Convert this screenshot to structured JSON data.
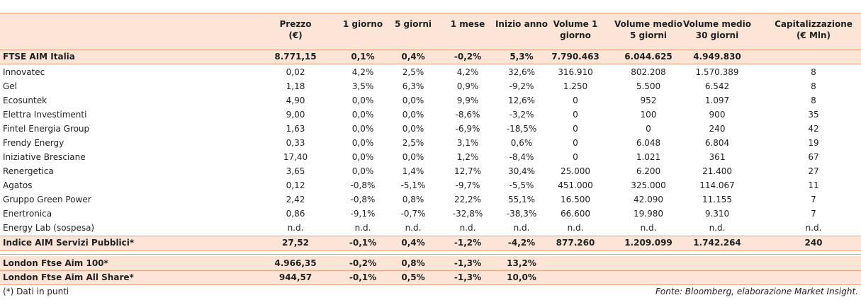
{
  "table": {
    "header": [
      [
        "Prezzo",
        "(€)"
      ],
      [
        "1 giorno"
      ],
      [
        "5 giorni"
      ],
      [
        "1 mese"
      ],
      [
        "Inizio anno"
      ],
      [
        "Volume 1",
        "giorno"
      ],
      [
        "Volume medio",
        "5 giorni"
      ],
      [
        "Volume medio",
        "30 giorni"
      ],
      [
        "Capitalizzazione",
        "(€ Mln)"
      ]
    ],
    "index_row": [
      "FTSE AIM Italia",
      "8.771,15",
      "0,1%",
      "0,4%",
      "-0,2%",
      "5,3%",
      "7.790.463",
      "6.044.625",
      "4.949.830"
    ],
    "rows": [
      [
        "Innovatec",
        "0,02",
        "4,2%",
        "2,5%",
        "4,2%",
        "32,6%",
        "316.910",
        "802.208",
        "1.570.389",
        "8"
      ],
      [
        "Gel",
        "1,18",
        "3,5%",
        "6,3%",
        "0,9%",
        "-9,2%",
        "1.250",
        "5.500",
        "6.542",
        "8"
      ],
      [
        "Ecosuntek",
        "4,90",
        "0,0%",
        "0,0%",
        "9,9%",
        "12,6%",
        "0",
        "952",
        "1.097",
        "8"
      ],
      [
        "Elettra Investimenti",
        "9,00",
        "0,0%",
        "0,0%",
        "-8,6%",
        "-3,2%",
        "0",
        "100",
        "900",
        "35"
      ],
      [
        "Fintel Energia Group",
        "1,63",
        "0,0%",
        "0,0%",
        "-6,9%",
        "-18,5%",
        "0",
        "0",
        "240",
        "42"
      ],
      [
        "Frendy Energy",
        "0,33",
        "0,0%",
        "2,5%",
        "3,1%",
        "0,6%",
        "0",
        "6.048",
        "6.804",
        "19"
      ],
      [
        "Iniziative Bresciane",
        "17,40",
        "0,0%",
        "0,0%",
        "1,2%",
        "-8,4%",
        "0",
        "1.021",
        "361",
        "67"
      ],
      [
        "Renergetica",
        "3,65",
        "0,0%",
        "1,4%",
        "12,7%",
        "30,4%",
        "25.000",
        "6.200",
        "21.400",
        "27"
      ],
      [
        "Agatos",
        "0,12",
        "-0,8%",
        "-5,1%",
        "-9,7%",
        "-5,5%",
        "451.000",
        "325.000",
        "114.067",
        "11"
      ],
      [
        "Gruppo Green Power",
        "2,42",
        "-0,8%",
        "0,8%",
        "22,2%",
        "55,1%",
        "16.500",
        "42.090",
        "11.155",
        "7"
      ],
      [
        "Enertronica",
        "0,86",
        "-9,1%",
        "-0,7%",
        "-32,8%",
        "-38,3%",
        "66.600",
        "19.980",
        "9.310",
        "7"
      ],
      [
        "Energy Lab (sospesa)",
        "n.d.",
        "n.d.",
        "n.d.",
        "n.d.",
        "n.d.",
        "n.d.",
        "n.d.",
        "n.d.",
        "n.d."
      ]
    ],
    "sector_row": [
      "Indice AIM Servizi Pubblici*",
      "27,52",
      "-0,1%",
      "0,4%",
      "-1,2%",
      "-4,2%",
      "877.260",
      "1.209.099",
      "1.742.264",
      "240"
    ],
    "london_rows": [
      [
        "London Ftse Aim 100*",
        "4.966,35",
        "-0,2%",
        "0,8%",
        "-1,3%",
        "13,2%"
      ],
      [
        "London Ftse Aim All Share*",
        "944,57",
        "-0,1%",
        "0,5%",
        "-1,3%",
        "10,0%"
      ]
    ]
  },
  "footnote": "(*) Dati in punti",
  "source": "Fonte: Bloomberg, elaborazione Market Insight."
}
